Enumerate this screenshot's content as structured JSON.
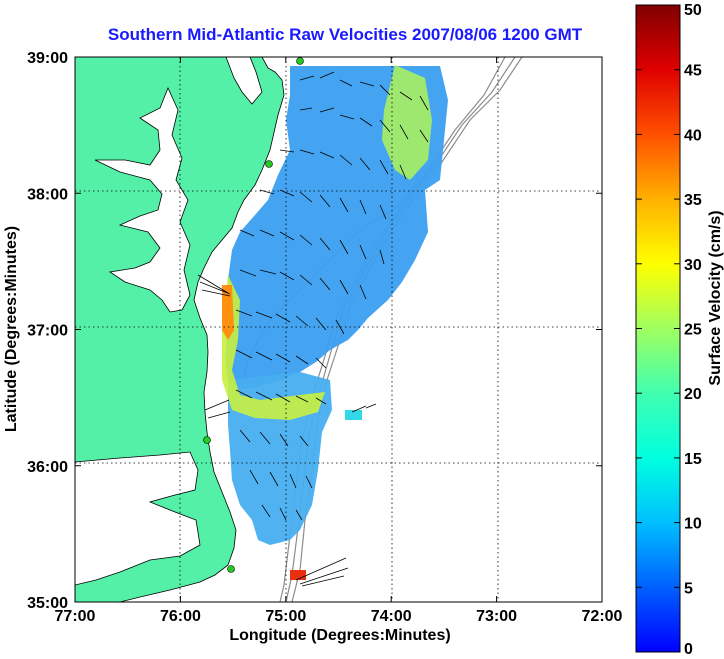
{
  "chart_data": {
    "type": "heatmap",
    "title": "Southern Mid-Atlantic Raw Velocities 2007/08/06 1200 GMT",
    "xlabel": "Longitude (Degrees:Minutes)",
    "ylabel": "Latitude (Degrees:Minutes)",
    "x_ticks": [
      "77:00",
      "76:00",
      "75:00",
      "74:00",
      "73:00",
      "72:00"
    ],
    "y_ticks": [
      "39:00",
      "38:00",
      "37:00",
      "36:00",
      "35:00"
    ],
    "xlim": [
      -77,
      -72
    ],
    "ylim": [
      35,
      39
    ],
    "grid": true,
    "colorbar": {
      "label": "Surface Velocity (cm/s)",
      "ticks": [
        "50",
        "45",
        "40",
        "35",
        "30",
        "25",
        "20",
        "15",
        "10",
        "5",
        "0"
      ],
      "range": [
        0,
        50
      ]
    },
    "colors": {
      "land": "#55f0a8",
      "title": "#1a1aff",
      "site_marker": "#22cc22"
    }
  }
}
